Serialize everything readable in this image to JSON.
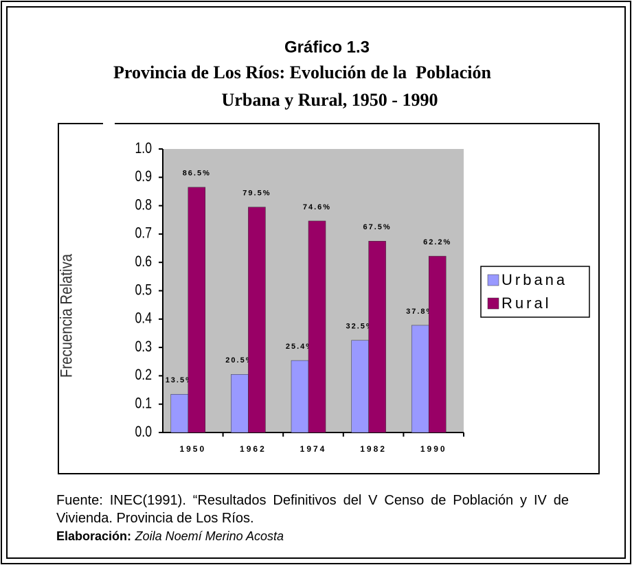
{
  "heading": {
    "label": "Gráfico 1.3",
    "title_line1": "Provincia de Los Ríos: Evolución de la  Población",
    "title_line2": "Urbana y Rural, 1950 - 1990"
  },
  "chart_data": {
    "type": "bar",
    "y_label": "Frecuencia Relativa",
    "categories": [
      "1950",
      "1962",
      "1974",
      "1982",
      "1990"
    ],
    "series": [
      {
        "name": "Urbana",
        "color": "#9999ff",
        "values": [
          0.135,
          0.205,
          0.254,
          0.325,
          0.378
        ],
        "value_labels": [
          "13.5%",
          "20.5%",
          "25.4%",
          "32.5%",
          "37.8%"
        ]
      },
      {
        "name": "Rural",
        "color": "#990066",
        "values": [
          0.865,
          0.795,
          0.746,
          0.675,
          0.622
        ],
        "value_labels": [
          "86.5%",
          "79.5%",
          "74.6%",
          "67.5%",
          "62.2%"
        ]
      }
    ],
    "ylim": [
      0,
      1
    ],
    "yticks": [
      {
        "value": 0,
        "label": "0.0"
      },
      0.1,
      0.2,
      0.3,
      0.4,
      0.5,
      0.6,
      0.7,
      0.8,
      0.9,
      {
        "value": 1,
        "label": "1.0"
      }
    ],
    "grid": false,
    "legend": "right",
    "plot_background": "#c0c0c0"
  },
  "footer": {
    "source": "Fuente: INEC(1991). “Resultados Definitivos del V Censo de Población y IV de Vivienda. Provincia de Los Ríos.",
    "credit_label": "Elaboración:",
    "credit": "Zoila Noemí Merino Acosta"
  }
}
